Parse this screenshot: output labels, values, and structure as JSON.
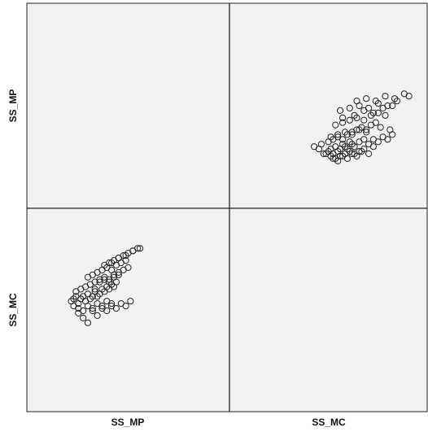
{
  "chart_data": {
    "type": "scatter",
    "variables": [
      "SS_MP",
      "SS_MC"
    ],
    "x_axis_labels": [
      "SS_MP",
      "SS_MC"
    ],
    "y_axis_labels": [
      "SS_MP",
      "SS_MC"
    ],
    "grid": false,
    "background": "#f2f2f2",
    "point_style": "open-circle",
    "panels": [
      {
        "row": 0,
        "col": 1,
        "xvar": "SS_MC",
        "yvar": "SS_MP",
        "x": [
          4.8,
          4.9,
          5.0,
          5.1,
          5.2,
          5.3,
          5.4,
          5.5,
          5.6,
          5.7,
          5.8,
          5.9,
          6.0,
          6.2,
          6.4,
          6.6,
          6.8,
          7.0,
          7.2,
          7.4,
          7.6,
          4.3,
          4.5,
          4.6,
          4.7,
          5.0,
          5.2,
          5.4,
          5.6,
          5.8,
          6.0,
          6.2,
          6.4,
          6.6,
          6.8,
          5.0,
          5.3,
          5.6,
          5.9,
          6.2,
          6.5,
          7.1,
          7.5,
          4.9,
          5.1,
          5.3,
          5.5,
          5.7,
          5.9,
          6.1,
          6.3,
          6.5,
          6.7,
          6.9,
          5.2,
          5.5,
          5.8,
          6.1,
          6.4,
          6.7,
          7.0,
          7.3,
          5.4,
          5.8,
          6.2,
          6.6,
          7.0,
          7.4,
          7.8,
          6.1,
          6.5,
          6.9,
          7.3,
          7.7,
          8.1,
          8.3,
          5.5,
          6.0,
          6.4,
          6.8,
          7.2,
          7.6,
          5.1,
          5.3,
          5.5,
          5.7,
          5.9,
          6.1,
          6.3
        ],
        "y": [
          3.0,
          3.1,
          3.2,
          3.0,
          3.3,
          3.1,
          3.2,
          3.4,
          3.3,
          3.2,
          3.5,
          3.4,
          3.3,
          3.5,
          3.6,
          3.4,
          3.6,
          3.5,
          3.7,
          3.6,
          3.8,
          3.3,
          3.2,
          3.4,
          3.0,
          2.9,
          2.8,
          2.9,
          3.0,
          3.1,
          3.0,
          3.1,
          3.2,
          3.0,
          3.3,
          3.7,
          3.8,
          3.9,
          3.8,
          4.0,
          3.9,
          4.1,
          4.0,
          3.5,
          3.6,
          3.7,
          3.6,
          3.8,
          3.9,
          4.0,
          4.1,
          4.0,
          4.2,
          4.3,
          4.2,
          4.3,
          4.4,
          4.5,
          4.4,
          4.6,
          4.7,
          4.6,
          4.8,
          4.9,
          5.0,
          4.9,
          5.1,
          5.0,
          5.2,
          5.2,
          5.3,
          5.2,
          5.4,
          5.3,
          5.5,
          5.4,
          4.5,
          4.6,
          4.8,
          4.7,
          4.9,
          5.0,
          2.8,
          2.7,
          2.9,
          2.8,
          3.0,
          2.9,
          3.1
        ]
      },
      {
        "row": 1,
        "col": 0,
        "xvar": "SS_MP",
        "yvar": "SS_MC",
        "x": [
          2.6,
          2.7,
          2.8,
          2.9,
          3.0,
          3.1,
          3.2,
          3.3,
          3.4,
          3.5,
          3.6,
          3.7,
          3.8,
          3.9,
          4.0,
          4.1,
          4.2,
          4.3,
          4.4,
          4.5,
          2.7,
          2.9,
          3.1,
          3.3,
          3.5,
          3.7,
          3.9,
          4.1,
          4.3,
          2.8,
          3.0,
          3.2,
          3.4,
          3.6,
          3.8,
          4.0,
          4.2,
          4.4,
          4.6,
          3.3,
          3.5,
          3.7,
          3.9,
          4.1,
          4.3,
          4.5,
          4.7,
          4.9,
          3.6,
          3.8,
          4.0,
          4.2,
          4.4,
          4.6,
          4.8,
          5.0,
          4.2,
          4.4,
          4.6,
          4.8,
          5.0,
          5.2,
          5.4,
          4.0,
          4.3,
          4.6,
          4.9,
          5.2,
          5.5,
          2.9,
          3.1,
          3.3,
          3.5,
          3.7,
          3.9,
          4.1,
          4.3,
          4.5,
          4.7,
          4.9,
          5.1
        ],
        "y": [
          5.4,
          5.5,
          5.6,
          5.3,
          5.5,
          5.6,
          5.4,
          5.7,
          5.5,
          5.6,
          5.8,
          5.6,
          5.7,
          5.9,
          5.8,
          6.0,
          5.9,
          6.1,
          6.0,
          6.2,
          5.2,
          5.1,
          5.0,
          5.2,
          5.1,
          5.3,
          5.2,
          5.4,
          5.3,
          5.8,
          5.9,
          6.0,
          6.1,
          5.9,
          6.2,
          6.3,
          6.2,
          6.4,
          6.5,
          6.4,
          6.5,
          6.6,
          6.7,
          6.8,
          6.7,
          6.9,
          7.0,
          7.1,
          6.2,
          6.3,
          6.4,
          6.3,
          6.5,
          6.6,
          6.7,
          6.8,
          7.0,
          7.1,
          7.2,
          7.3,
          7.4,
          7.5,
          7.6,
          6.9,
          7.0,
          7.2,
          7.3,
          7.5,
          7.6,
          4.9,
          4.7,
          4.5,
          5.0,
          4.8,
          5.1,
          5.0,
          5.2,
          5.1,
          5.3,
          5.2,
          5.4
        ]
      }
    ]
  }
}
